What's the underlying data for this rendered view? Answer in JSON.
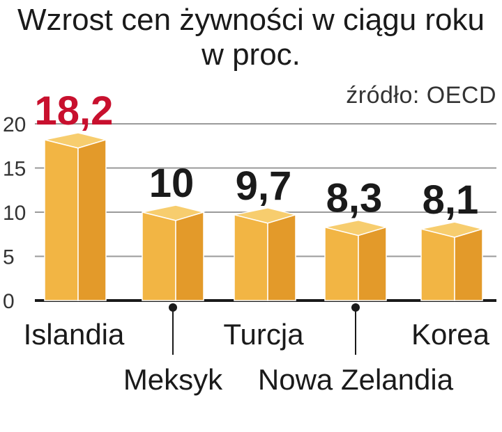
{
  "chart_data": {
    "type": "bar",
    "title_lines": [
      "Wzrost cen żywności w ciągu roku",
      "w proc."
    ],
    "source": "źródło: OECD",
    "categories": [
      "Islandia",
      "Meksyk",
      "Turcja",
      "Nowa Zelandia",
      "Korea"
    ],
    "values": [
      18.2,
      10,
      9.7,
      8.3,
      8.1
    ],
    "value_labels": [
      "18,2",
      "10",
      "9,7",
      "8,3",
      "8,1"
    ],
    "highlight_index": 0,
    "ylim": [
      0,
      20
    ],
    "yticks": [
      "0",
      "5",
      "10",
      "15",
      "20"
    ],
    "grid": true,
    "colors": {
      "bar_front": "#f2b544",
      "bar_side": "#e39a2a",
      "bar_top": "#f7cd6e",
      "highlight_label": "#c8102e",
      "label": "#1a1a1a",
      "grid": "#9a9a9a"
    }
  }
}
